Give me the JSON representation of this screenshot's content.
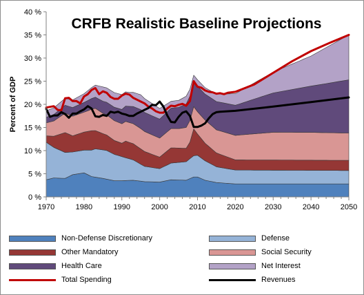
{
  "chart_data": {
    "type": "area",
    "title": "CRFB Realistic Baseline Projections",
    "xlabel": "",
    "ylabel": "Percent of GDP",
    "xlim": [
      1970,
      2050
    ],
    "ylim": [
      0,
      40
    ],
    "x_ticks": [
      "1970",
      "1980",
      "1990",
      "2000",
      "2010",
      "2020",
      "2030",
      "2040",
      "2050"
    ],
    "y_ticks": [
      "0 %",
      "5 %",
      "10 %",
      "15 %",
      "20 %",
      "25 %",
      "30 %",
      "35 %",
      "40 %"
    ],
    "grid": false,
    "legend_position": "bottom",
    "stacked_series": [
      {
        "name": "Non-Defense Discretionary",
        "color": "#4f81bd",
        "points": [
          [
            1970,
            3.7
          ],
          [
            1972,
            4.1
          ],
          [
            1975,
            4.0
          ],
          [
            1977,
            4.8
          ],
          [
            1980,
            5.2
          ],
          [
            1982,
            4.4
          ],
          [
            1985,
            4.0
          ],
          [
            1988,
            3.5
          ],
          [
            1990,
            3.5
          ],
          [
            1993,
            3.6
          ],
          [
            1996,
            3.3
          ],
          [
            2000,
            3.2
          ],
          [
            2003,
            3.7
          ],
          [
            2007,
            3.6
          ],
          [
            2009,
            4.3
          ],
          [
            2010,
            4.3
          ],
          [
            2012,
            3.6
          ],
          [
            2015,
            3.1
          ],
          [
            2020,
            2.8
          ],
          [
            2050,
            2.8
          ]
        ]
      },
      {
        "name": "Defense",
        "color": "#95b3d7",
        "points": [
          [
            1970,
            8.1
          ],
          [
            1972,
            6.6
          ],
          [
            1975,
            5.6
          ],
          [
            1977,
            4.9
          ],
          [
            1980,
            4.9
          ],
          [
            1983,
            6.1
          ],
          [
            1986,
            6.2
          ],
          [
            1990,
            5.2
          ],
          [
            1993,
            4.4
          ],
          [
            1996,
            3.3
          ],
          [
            2000,
            2.9
          ],
          [
            2003,
            3.6
          ],
          [
            2007,
            4.0
          ],
          [
            2009,
            4.6
          ],
          [
            2010,
            4.7
          ],
          [
            2012,
            4.2
          ],
          [
            2015,
            3.4
          ],
          [
            2020,
            3.0
          ],
          [
            2050,
            2.9
          ]
        ]
      },
      {
        "name": "Other Mandatory",
        "color": "#953735",
        "points": [
          [
            1970,
            1.4
          ],
          [
            1972,
            2.4
          ],
          [
            1975,
            4.3
          ],
          [
            1977,
            3.5
          ],
          [
            1980,
            3.9
          ],
          [
            1982,
            4.2
          ],
          [
            1985,
            3.5
          ],
          [
            1988,
            3.0
          ],
          [
            1990,
            2.9
          ],
          [
            1991,
            3.6
          ],
          [
            1993,
            3.5
          ],
          [
            1996,
            3.2
          ],
          [
            2000,
            2.5
          ],
          [
            2003,
            3.3
          ],
          [
            2007,
            2.9
          ],
          [
            2008,
            3.6
          ],
          [
            2009,
            5.8
          ],
          [
            2010,
            4.6
          ],
          [
            2012,
            3.8
          ],
          [
            2015,
            3.0
          ],
          [
            2020,
            2.2
          ],
          [
            2050,
            2.2
          ]
        ]
      },
      {
        "name": "Social Security",
        "color": "#d99694",
        "points": [
          [
            1970,
            2.8
          ],
          [
            1972,
            3.3
          ],
          [
            1975,
            4.2
          ],
          [
            1980,
            4.3
          ],
          [
            1983,
            4.8
          ],
          [
            1985,
            4.4
          ],
          [
            1990,
            4.2
          ],
          [
            1995,
            4.4
          ],
          [
            2000,
            4.1
          ],
          [
            2005,
            4.2
          ],
          [
            2009,
            4.8
          ],
          [
            2010,
            4.8
          ],
          [
            2012,
            5.0
          ],
          [
            2015,
            5.0
          ],
          [
            2020,
            5.3
          ],
          [
            2030,
            6.0
          ],
          [
            2040,
            6.0
          ],
          [
            2050,
            5.9
          ]
        ]
      },
      {
        "name": "Health Care",
        "color": "#604a7b",
        "points": [
          [
            1970,
            1.2
          ],
          [
            1975,
            1.7
          ],
          [
            1980,
            2.1
          ],
          [
            1985,
            2.6
          ],
          [
            1990,
            3.1
          ],
          [
            1995,
            4.1
          ],
          [
            2000,
            4.1
          ],
          [
            2005,
            4.6
          ],
          [
            2009,
            5.5
          ],
          [
            2010,
            5.5
          ],
          [
            2012,
            5.6
          ],
          [
            2015,
            6.1
          ],
          [
            2020,
            6.5
          ],
          [
            2030,
            8.5
          ],
          [
            2040,
            10.0
          ],
          [
            2050,
            11.5
          ]
        ]
      },
      {
        "name": "Net Interest",
        "color": "#b3a2c7",
        "points": [
          [
            1970,
            1.4
          ],
          [
            1975,
            1.5
          ],
          [
            1980,
            1.9
          ],
          [
            1985,
            3.1
          ],
          [
            1990,
            3.2
          ],
          [
            1992,
            3.0
          ],
          [
            1995,
            3.2
          ],
          [
            2000,
            2.3
          ],
          [
            2003,
            1.5
          ],
          [
            2005,
            1.5
          ],
          [
            2007,
            1.7
          ],
          [
            2009,
            1.3
          ],
          [
            2010,
            1.4
          ],
          [
            2012,
            1.4
          ],
          [
            2015,
            1.6
          ],
          [
            2020,
            2.5
          ],
          [
            2030,
            4.5
          ],
          [
            2040,
            6.5
          ],
          [
            2050,
            9.7
          ]
        ]
      }
    ],
    "line_series": [
      {
        "name": "Total Spending",
        "color": "#c00000",
        "points": [
          [
            1970,
            19.3
          ],
          [
            1972,
            19.6
          ],
          [
            1973,
            18.8
          ],
          [
            1974,
            18.7
          ],
          [
            1975,
            21.3
          ],
          [
            1976,
            21.4
          ],
          [
            1977,
            20.7
          ],
          [
            1978,
            20.7
          ],
          [
            1979,
            20.2
          ],
          [
            1980,
            21.7
          ],
          [
            1981,
            22.2
          ],
          [
            1982,
            23.1
          ],
          [
            1983,
            23.5
          ],
          [
            1984,
            22.2
          ],
          [
            1985,
            22.8
          ],
          [
            1986,
            22.5
          ],
          [
            1987,
            21.6
          ],
          [
            1988,
            21.2
          ],
          [
            1989,
            21.2
          ],
          [
            1990,
            21.9
          ],
          [
            1991,
            22.3
          ],
          [
            1992,
            22.1
          ],
          [
            1993,
            21.4
          ],
          [
            1994,
            21.0
          ],
          [
            1995,
            20.6
          ],
          [
            1996,
            20.2
          ],
          [
            1997,
            19.5
          ],
          [
            1998,
            19.1
          ],
          [
            1999,
            18.5
          ],
          [
            2000,
            18.2
          ],
          [
            2001,
            18.2
          ],
          [
            2002,
            19.1
          ],
          [
            2003,
            19.7
          ],
          [
            2004,
            19.6
          ],
          [
            2005,
            19.9
          ],
          [
            2006,
            20.1
          ],
          [
            2007,
            19.7
          ],
          [
            2008,
            20.7
          ],
          [
            2009,
            25.0
          ],
          [
            2010,
            23.8
          ],
          [
            2011,
            23.6
          ],
          [
            2012,
            23.0
          ],
          [
            2013,
            22.7
          ],
          [
            2014,
            22.6
          ],
          [
            2015,
            22.3
          ],
          [
            2016,
            22.4
          ],
          [
            2017,
            22.2
          ],
          [
            2018,
            22.5
          ],
          [
            2020,
            22.7
          ],
          [
            2025,
            24.3
          ],
          [
            2030,
            26.8
          ],
          [
            2035,
            29.3
          ],
          [
            2040,
            31.5
          ],
          [
            2045,
            33.3
          ],
          [
            2050,
            35.0
          ]
        ]
      },
      {
        "name": "Revenues",
        "color": "#000000",
        "points": [
          [
            1970,
            19.0
          ],
          [
            1971,
            17.3
          ],
          [
            1972,
            17.6
          ],
          [
            1973,
            17.6
          ],
          [
            1974,
            18.3
          ],
          [
            1975,
            17.9
          ],
          [
            1976,
            17.1
          ],
          [
            1977,
            18.0
          ],
          [
            1978,
            18.0
          ],
          [
            1979,
            18.5
          ],
          [
            1980,
            18.9
          ],
          [
            1981,
            19.6
          ],
          [
            1982,
            19.1
          ],
          [
            1983,
            17.4
          ],
          [
            1984,
            17.3
          ],
          [
            1985,
            17.7
          ],
          [
            1986,
            17.5
          ],
          [
            1987,
            18.4
          ],
          [
            1988,
            18.2
          ],
          [
            1989,
            18.4
          ],
          [
            1990,
            18.0
          ],
          [
            1991,
            17.8
          ],
          [
            1992,
            17.5
          ],
          [
            1993,
            17.5
          ],
          [
            1994,
            18.0
          ],
          [
            1995,
            18.4
          ],
          [
            1996,
            18.8
          ],
          [
            1997,
            19.2
          ],
          [
            1998,
            19.9
          ],
          [
            1999,
            19.8
          ],
          [
            2000,
            20.6
          ],
          [
            2001,
            19.5
          ],
          [
            2002,
            17.6
          ],
          [
            2003,
            16.2
          ],
          [
            2004,
            16.1
          ],
          [
            2005,
            17.3
          ],
          [
            2006,
            18.2
          ],
          [
            2007,
            18.5
          ],
          [
            2008,
            17.5
          ],
          [
            2009,
            15.1
          ],
          [
            2010,
            15.1
          ],
          [
            2011,
            15.4
          ],
          [
            2012,
            15.9
          ],
          [
            2013,
            17.0
          ],
          [
            2014,
            17.9
          ],
          [
            2015,
            18.3
          ],
          [
            2016,
            18.4
          ],
          [
            2020,
            18.6
          ],
          [
            2030,
            19.5
          ],
          [
            2040,
            20.5
          ],
          [
            2050,
            21.5
          ]
        ]
      }
    ]
  }
}
